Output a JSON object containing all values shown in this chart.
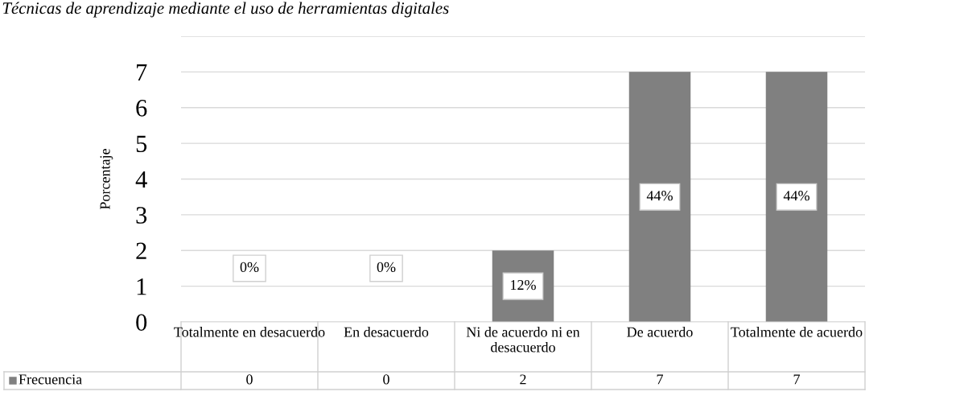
{
  "chart_data": {
    "type": "bar",
    "title": "Técnicas de aprendizaje mediante el uso de herramientas digitales",
    "ylabel": "Porcentaje",
    "categories": [
      "Totalmente en desacuerdo",
      "En desacuerdo",
      "Ni de acuerdo ni en desacuerdo",
      "De acuerdo",
      "Totalmente de acuerdo"
    ],
    "series": [
      {
        "name": "Frecuencia",
        "color": "#808080",
        "values": [
          0,
          0,
          2,
          7,
          7
        ]
      }
    ],
    "annotations": [
      "0%",
      "0%",
      "12%",
      "44%",
      "44%"
    ],
    "data_labels": true,
    "ylim": [
      0,
      8
    ],
    "yticks": [
      0,
      1,
      2,
      3,
      4,
      5,
      6,
      7,
      {
        "value": 8,
        "label": null
      }
    ],
    "grid": "y",
    "legend": "bottom"
  }
}
